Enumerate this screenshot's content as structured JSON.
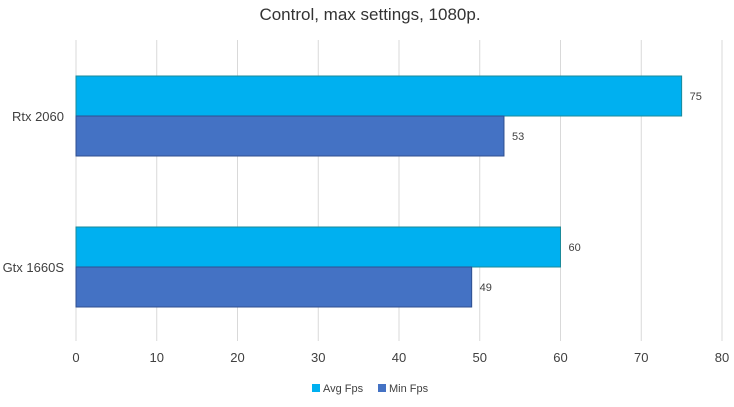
{
  "chart_data": {
    "type": "bar",
    "orientation": "horizontal",
    "title": "Control, max settings, 1080p.",
    "categories": [
      "Rtx 2060",
      "Gtx 1660S"
    ],
    "series": [
      {
        "name": "Avg Fps",
        "values": [
          75,
          60
        ],
        "color": "#00b0f0"
      },
      {
        "name": "Min Fps",
        "values": [
          53,
          49
        ],
        "color": "#4472c4"
      }
    ],
    "xlim": [
      0,
      80
    ],
    "xticks": [
      "0",
      "10",
      "20",
      "30",
      "40",
      "50",
      "60",
      "70",
      "80"
    ],
    "grid": true,
    "legend_position": "bottom",
    "data_labels": true
  }
}
